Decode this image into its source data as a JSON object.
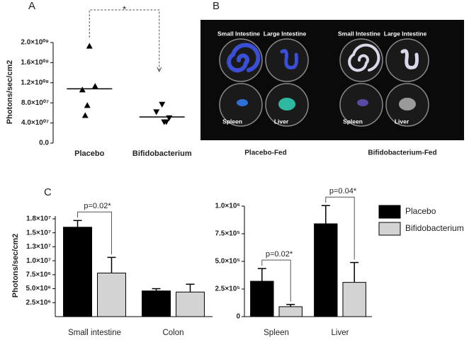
{
  "chart_data": [
    {
      "type": "strip",
      "label": "A",
      "ylabel": "Photons/sec/cm2",
      "categories": [
        "Placebo",
        "Bifidobacterium"
      ],
      "values": [
        [
          193000000,
          113000000,
          106000000,
          75000000,
          55000000
        ],
        [
          77000000,
          62000000,
          50000000,
          42000000,
          42000000
        ]
      ],
      "means": [
        108000000,
        52000000
      ],
      "markers": [
        "triangle-up",
        "triangle-down"
      ],
      "color": "#000000",
      "ylim": [
        0,
        200000000
      ],
      "yticks": [
        {
          "value": 0,
          "label": "0.0"
        },
        {
          "value": 40000000,
          "label": "4.0×10⁰⁷"
        },
        {
          "value": 80000000,
          "label": "8.0×10⁰⁷"
        },
        {
          "value": 120000000,
          "label": "1.2×10⁰⁸"
        },
        {
          "value": 160000000,
          "label": "1.6×10⁰⁸"
        },
        {
          "value": 200000000,
          "label": "2.0×10⁰⁸"
        }
      ],
      "annotations": [
        "*"
      ]
    },
    {
      "type": "bar",
      "label": "C",
      "ylabel": "Photons/sec/cm2",
      "categories": [
        "Small intestine",
        "Colon"
      ],
      "series": [
        {
          "name": "Placebo",
          "color": "#000000",
          "values": [
            16000000,
            4600000
          ],
          "errors": [
            1200000,
            400000
          ]
        },
        {
          "name": "Bifidobacterium",
          "color": "#d3d3d3",
          "values": [
            7800000,
            4400000
          ],
          "errors": [
            2800000,
            1400000
          ]
        }
      ],
      "ylim": [
        0,
        18000000
      ],
      "yticks": [
        {
          "value": 2500000,
          "label": "2.5×10⁶"
        },
        {
          "value": 5000000,
          "label": "5.0×10⁶"
        },
        {
          "value": 7500000,
          "label": "7.5×10⁶"
        },
        {
          "value": 10000000,
          "label": "1.0×10⁷"
        },
        {
          "value": 12500000,
          "label": "1.3×10⁷"
        },
        {
          "value": 15000000,
          "label": "1.5×10⁷"
        },
        {
          "value": 17500000,
          "label": "1.8×10⁷"
        }
      ],
      "annotations": [
        "p=0.02*"
      ],
      "legend": false
    },
    {
      "type": "bar",
      "categories": [
        "Spleen",
        "Liver"
      ],
      "series": [
        {
          "name": "Placebo",
          "color": "#000000",
          "values": [
            320000,
            840000
          ],
          "errors": [
            115000,
            165000
          ]
        },
        {
          "name": "Bifidobacterium",
          "color": "#d3d3d3",
          "values": [
            90000,
            310000
          ],
          "errors": [
            20000,
            180000
          ]
        }
      ],
      "ylim": [
        0,
        1000000
      ],
      "yticks": [
        0,
        {
          "value": 250000,
          "label": "2.5×10⁵"
        },
        {
          "value": 500000,
          "label": "5.0×10⁵"
        },
        {
          "value": 750000,
          "label": "7.5×10⁵"
        },
        {
          "value": 1000000,
          "label": "1.0×10⁶"
        }
      ],
      "annotations": [
        "p=0.02*",
        "p=0.04*"
      ],
      "legend": "upper right"
    }
  ],
  "image": {
    "label": "B",
    "panels": [
      {
        "caption": "Placebo-Fed",
        "labels": [
          "Small Intestine",
          "Large Intestine",
          "Spleen",
          "Liver"
        ]
      },
      {
        "caption": "Bifidobacterium-Fed",
        "labels": [
          "Small Intestine",
          "Large Intestine",
          "Spleen",
          "Liver"
        ]
      }
    ]
  }
}
